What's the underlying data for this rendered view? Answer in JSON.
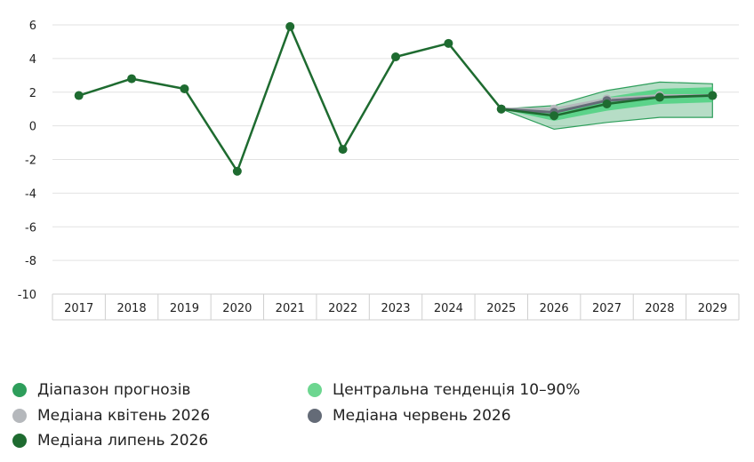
{
  "chart_data": {
    "type": "line",
    "title": "",
    "xlabel": "",
    "ylabel": "",
    "categories": [
      "2017",
      "2018",
      "2019",
      "2020",
      "2021",
      "2022",
      "2023",
      "2024",
      "2025",
      "2026",
      "2027",
      "2028",
      "2029"
    ],
    "ylim": [
      -10,
      6
    ],
    "yticks": [
      6,
      4,
      2,
      0,
      -2,
      -4,
      -6,
      -8,
      -10
    ],
    "grid": true,
    "legend_position": "bottom",
    "series": [
      {
        "name": "Медіана липень 2026",
        "color": "#1e6b30",
        "values": [
          1.8,
          2.8,
          2.2,
          -2.7,
          5.9,
          -1.4,
          4.1,
          4.9,
          1.0,
          0.6,
          1.3,
          1.7,
          1.8
        ]
      },
      {
        "name": "Медіана квітень 2026",
        "color": "#b5b8bc",
        "values": [
          null,
          null,
          null,
          null,
          null,
          null,
          null,
          null,
          1.0,
          1.0,
          1.6,
          1.8,
          1.8
        ]
      },
      {
        "name": "Медіана червень 2026",
        "color": "#646b77",
        "values": [
          null,
          null,
          null,
          null,
          null,
          null,
          null,
          null,
          1.0,
          0.8,
          1.5,
          1.7,
          1.8
        ]
      }
    ],
    "bands": [
      {
        "name": "Діапазон прогнозів",
        "color": "#2e9e5b",
        "lower": [
          null,
          null,
          null,
          null,
          null,
          null,
          null,
          null,
          1.0,
          -0.2,
          0.2,
          0.5,
          0.5
        ],
        "upper": [
          null,
          null,
          null,
          null,
          null,
          null,
          null,
          null,
          1.0,
          1.2,
          2.1,
          2.6,
          2.5
        ]
      },
      {
        "name": "Центральна тенденція 10–90%",
        "color": "#6dd690",
        "lower": [
          null,
          null,
          null,
          null,
          null,
          null,
          null,
          null,
          1.0,
          0.3,
          0.9,
          1.3,
          1.4
        ],
        "upper": [
          null,
          null,
          null,
          null,
          null,
          null,
          null,
          null,
          1.0,
          0.9,
          1.7,
          2.2,
          2.3
        ]
      }
    ]
  },
  "legend": [
    {
      "label": "Діапазон прогнозів",
      "color": "#2e9e5b"
    },
    {
      "label": "Центральна тенденція 10–90%",
      "color": "#6dd690"
    },
    {
      "label": "Медіана квітень 2026",
      "color": "#b5b8bc"
    },
    {
      "label": "Медіана червень 2026",
      "color": "#646b77"
    },
    {
      "label": "Медіана липень 2026",
      "color": "#1e6b30"
    }
  ]
}
